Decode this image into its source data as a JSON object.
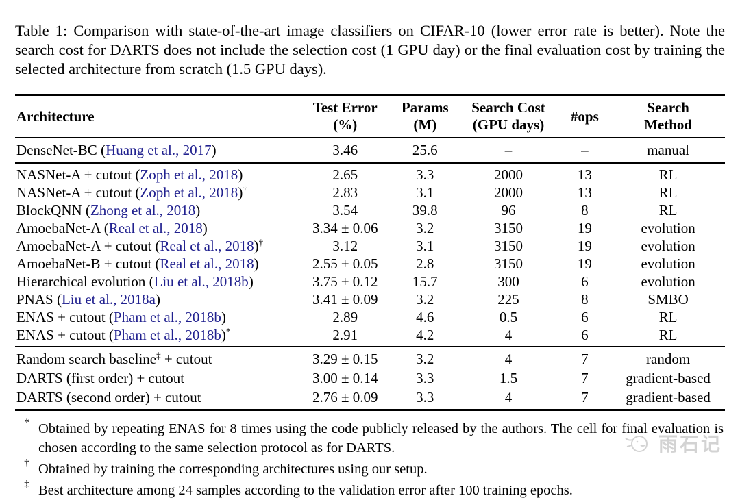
{
  "caption": "Table 1: Comparison with state-of-the-art image classifiers on CIFAR-10 (lower error rate is better). Note the search cost for DARTS does not include the selection cost (1 GPU day) or the final evaluation cost by training the selected architecture from scratch (1.5 GPU days).",
  "colors": {
    "citation": "#21218f",
    "text": "#000000",
    "watermark": "#d3d3d3"
  },
  "table": {
    "headers": [
      {
        "label": "Architecture",
        "sub": ""
      },
      {
        "label": "Test Error",
        "sub": "(%)"
      },
      {
        "label": "Params",
        "sub": "(M)"
      },
      {
        "label": "Search Cost",
        "sub": "(GPU days)"
      },
      {
        "label": "#ops",
        "sub": ""
      },
      {
        "label": "Search",
        "sub": "Method"
      }
    ],
    "sections": [
      {
        "rows": [
          {
            "arch": [
              [
                "t",
                "DenseNet-BC ("
              ],
              [
                "c",
                "Huang et al., 2017"
              ],
              [
                "t",
                ")"
              ]
            ],
            "cells": [
              "3.46",
              "25.6",
              "–",
              "–",
              "manual"
            ]
          }
        ]
      },
      {
        "rows": [
          {
            "arch": [
              [
                "t",
                "NASNet-A + cutout ("
              ],
              [
                "c",
                "Zoph et al., 2018"
              ],
              [
                "t",
                ")"
              ]
            ],
            "cells": [
              "2.65",
              "3.3",
              "2000",
              "13",
              "RL"
            ]
          },
          {
            "arch": [
              [
                "t",
                "NASNet-A + cutout ("
              ],
              [
                "c",
                "Zoph et al., 2018"
              ],
              [
                "t",
                ")"
              ],
              [
                "s",
                "†"
              ]
            ],
            "cells": [
              "2.83",
              "3.1",
              "2000",
              "13",
              "RL"
            ]
          },
          {
            "arch": [
              [
                "t",
                "BlockQNN ("
              ],
              [
                "c",
                "Zhong et al., 2018"
              ],
              [
                "t",
                ")"
              ]
            ],
            "cells": [
              "3.54",
              "39.8",
              "96",
              "8",
              "RL"
            ]
          },
          {
            "arch": [
              [
                "t",
                "AmoebaNet-A ("
              ],
              [
                "c",
                "Real et al., 2018"
              ],
              [
                "t",
                ")"
              ]
            ],
            "cells": [
              "3.34 ± 0.06",
              "3.2",
              "3150",
              "19",
              "evolution"
            ]
          },
          {
            "arch": [
              [
                "t",
                "AmoebaNet-A + cutout ("
              ],
              [
                "c",
                "Real et al., 2018"
              ],
              [
                "t",
                ")"
              ],
              [
                "s",
                "†"
              ]
            ],
            "cells": [
              "3.12",
              "3.1",
              "3150",
              "19",
              "evolution"
            ]
          },
          {
            "arch": [
              [
                "t",
                "AmoebaNet-B + cutout ("
              ],
              [
                "c",
                "Real et al., 2018"
              ],
              [
                "t",
                ")"
              ]
            ],
            "cells": [
              "2.55 ± 0.05",
              "2.8",
              "3150",
              "19",
              "evolution"
            ]
          },
          {
            "arch": [
              [
                "t",
                "Hierarchical evolution ("
              ],
              [
                "c",
                "Liu et al., 2018b"
              ],
              [
                "t",
                ")"
              ]
            ],
            "cells": [
              "3.75 ± 0.12",
              "15.7",
              "300",
              "6",
              "evolution"
            ]
          },
          {
            "arch": [
              [
                "t",
                "PNAS ("
              ],
              [
                "c",
                "Liu et al., 2018a"
              ],
              [
                "t",
                ")"
              ]
            ],
            "cells": [
              "3.41 ± 0.09",
              "3.2",
              "225",
              "8",
              "SMBO"
            ]
          },
          {
            "arch": [
              [
                "t",
                "ENAS + cutout ("
              ],
              [
                "c",
                "Pham et al., 2018b"
              ],
              [
                "t",
                ")"
              ]
            ],
            "cells": [
              "2.89",
              "4.6",
              "0.5",
              "6",
              "RL"
            ]
          },
          {
            "arch": [
              [
                "t",
                "ENAS + cutout ("
              ],
              [
                "c",
                "Pham et al., 2018b"
              ],
              [
                "t",
                ")"
              ],
              [
                "s",
                "*"
              ]
            ],
            "cells": [
              "2.91",
              "4.2",
              "4",
              "6",
              "RL"
            ]
          }
        ]
      },
      {
        "rows": [
          {
            "arch": [
              [
                "t",
                "Random search baseline"
              ],
              [
                "s",
                "‡"
              ],
              [
                "t",
                " + cutout"
              ]
            ],
            "cells": [
              "3.29 ± 0.15",
              "3.2",
              "4",
              "7",
              "random"
            ]
          },
          {
            "arch": [
              [
                "t",
                "DARTS (first order) + cutout"
              ]
            ],
            "cells": [
              "3.00 ± 0.14",
              "3.3",
              "1.5",
              "7",
              "gradient-based"
            ]
          },
          {
            "arch": [
              [
                "t",
                "DARTS (second order) + cutout"
              ]
            ],
            "cells": [
              "2.76 ± 0.09",
              "3.3",
              "4",
              "7",
              "gradient-based"
            ]
          }
        ]
      }
    ]
  },
  "footnotes": [
    {
      "marker": "*",
      "text": "Obtained by repeating ENAS for 8 times using the code publicly released by the authors. The cell for final evaluation is chosen according to the same selection protocol as for DARTS."
    },
    {
      "marker": "†",
      "text": "Obtained by training the corresponding architectures using our setup."
    },
    {
      "marker": "‡",
      "text": "Best architecture among 24 samples according to the validation error after 100 training epochs."
    }
  ],
  "watermark": {
    "text": "雨石记",
    "icon": "doodle-face-icon"
  }
}
